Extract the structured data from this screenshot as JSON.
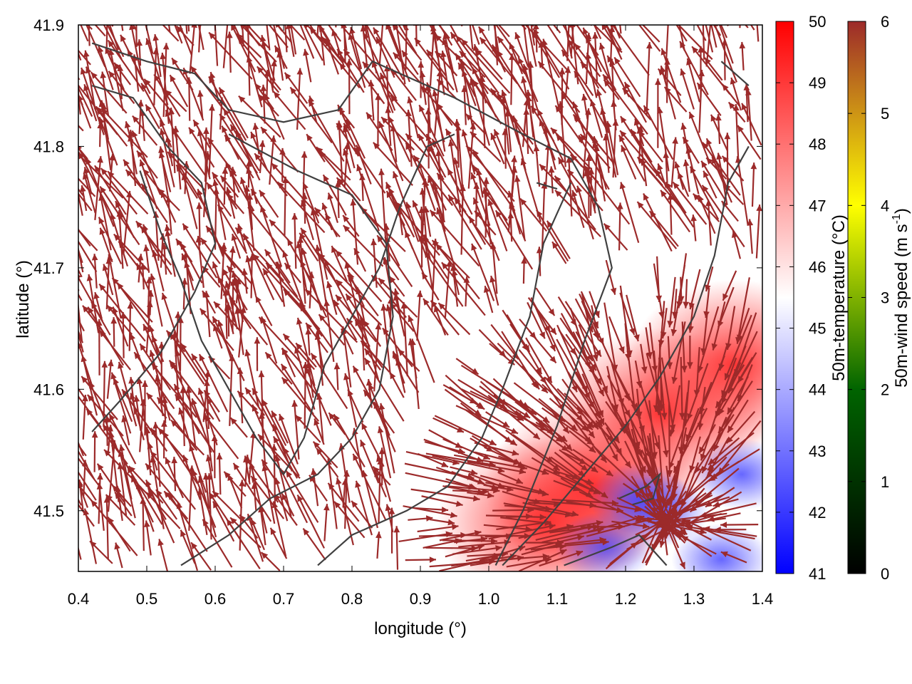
{
  "chart_data": {
    "type": "vector-field",
    "xlabel": "longitude (°)",
    "ylabel": "latitude (°)",
    "xlim": [
      0.4,
      1.4
    ],
    "ylim": [
      41.45,
      41.9
    ],
    "xticks": [
      0.4,
      0.5,
      0.6,
      0.7,
      0.8,
      0.9,
      1.0,
      1.1,
      1.2,
      1.3,
      1.4
    ],
    "xtick_labels": [
      "0.4",
      "0.5",
      "0.6",
      "0.7",
      "0.8",
      "0.9",
      "1.0",
      "1.1",
      "1.2",
      "1.3",
      "1.4"
    ],
    "yticks": [
      41.5,
      41.6,
      41.7,
      41.8,
      41.9
    ],
    "ytick_labels": [
      "41.5",
      "41.6",
      "41.7",
      "41.8",
      "41.9"
    ],
    "arrow_color": "#9c2a2a",
    "contour_color": "#404040",
    "colorbars": [
      {
        "label": "50m-temperature (°C)",
        "range": [
          41,
          50
        ],
        "ticks": [
          "41",
          "42",
          "43",
          "44",
          "45",
          "46",
          "47",
          "48",
          "49",
          "50"
        ],
        "colors": [
          "#0000ff",
          "#ffffff",
          "#ff0000"
        ]
      },
      {
        "label_main": "50m-wind speed (m s",
        "label_sup": "-1",
        "label_end": ")",
        "range": [
          0,
          6
        ],
        "ticks": [
          "0",
          "1",
          "2",
          "3",
          "4",
          "5",
          "6"
        ],
        "colors": [
          "#000000",
          "#006400",
          "#ffff00",
          "#9c2a2a"
        ]
      }
    ],
    "temperature_field": [
      {
        "lon": 1.25,
        "lat": 41.58,
        "temp": 49.5
      },
      {
        "lon": 1.36,
        "lat": 41.62,
        "temp": 49.6
      },
      {
        "lon": 1.15,
        "lat": 41.52,
        "temp": 49.2
      },
      {
        "lon": 1.08,
        "lat": 41.49,
        "temp": 49.0
      },
      {
        "lon": 1.22,
        "lat": 41.51,
        "temp": 43.0
      },
      {
        "lon": 1.25,
        "lat": 41.5,
        "temp": 42.5
      },
      {
        "lon": 1.17,
        "lat": 41.47,
        "temp": 43.5
      },
      {
        "lon": 1.34,
        "lat": 41.46,
        "temp": 43.0
      },
      {
        "lon": 1.37,
        "lat": 41.53,
        "temp": 44.0
      }
    ],
    "contours": [
      [
        [
          0.42,
          41.885
        ],
        [
          0.5,
          41.87
        ],
        [
          0.57,
          41.86
        ],
        [
          0.62,
          41.83
        ],
        [
          0.7,
          41.82
        ],
        [
          0.78,
          41.83
        ],
        [
          0.83,
          41.87
        ],
        [
          0.95,
          41.84
        ],
        [
          1.05,
          41.81
        ],
        [
          1.12,
          41.79
        ],
        [
          1.16,
          41.75
        ],
        [
          1.18,
          41.7
        ],
        [
          1.14,
          41.64
        ],
        [
          1.1,
          41.57
        ],
        [
          1.05,
          41.5
        ],
        [
          1.01,
          41.455
        ]
      ],
      [
        [
          0.42,
          41.85
        ],
        [
          0.48,
          41.84
        ],
        [
          0.53,
          41.8
        ],
        [
          0.58,
          41.77
        ],
        [
          0.6,
          41.72
        ],
        [
          0.57,
          41.68
        ],
        [
          0.52,
          41.63
        ],
        [
          0.46,
          41.59
        ],
        [
          0.42,
          41.565
        ]
      ],
      [
        [
          0.62,
          41.81
        ],
        [
          0.72,
          41.78
        ],
        [
          0.8,
          41.76
        ],
        [
          0.85,
          41.72
        ],
        [
          0.86,
          41.66
        ],
        [
          0.84,
          41.6
        ],
        [
          0.8,
          41.56
        ],
        [
          0.75,
          41.53
        ],
        [
          0.68,
          41.51
        ],
        [
          0.62,
          41.48
        ],
        [
          0.55,
          41.455
        ]
      ],
      [
        [
          0.49,
          41.78
        ],
        [
          0.52,
          41.73
        ],
        [
          0.55,
          41.69
        ],
        [
          0.58,
          41.64
        ],
        [
          0.62,
          41.6
        ],
        [
          0.66,
          41.56
        ],
        [
          0.7,
          41.53
        ],
        [
          0.73,
          41.56
        ],
        [
          0.76,
          41.62
        ],
        [
          0.8,
          41.66
        ],
        [
          0.84,
          41.7
        ],
        [
          0.87,
          41.75
        ],
        [
          0.91,
          41.8
        ],
        [
          0.95,
          41.81
        ]
      ],
      [
        [
          0.75,
          41.455
        ],
        [
          0.8,
          41.48
        ],
        [
          0.88,
          41.5
        ],
        [
          0.94,
          41.52
        ],
        [
          0.99,
          41.56
        ],
        [
          1.02,
          41.6
        ],
        [
          1.06,
          41.66
        ],
        [
          1.08,
          41.72
        ],
        [
          1.12,
          41.77
        ]
      ],
      [
        [
          1.02,
          41.455
        ],
        [
          1.08,
          41.49
        ],
        [
          1.14,
          41.53
        ],
        [
          1.2,
          41.57
        ],
        [
          1.25,
          41.61
        ],
        [
          1.3,
          41.66
        ],
        [
          1.33,
          41.71
        ],
        [
          1.35,
          41.77
        ],
        [
          1.38,
          41.8
        ]
      ],
      [
        [
          1.11,
          41.455
        ],
        [
          1.18,
          41.47
        ],
        [
          1.22,
          41.48
        ],
        [
          1.26,
          41.455
        ]
      ],
      [
        [
          1.19,
          41.51
        ],
        [
          1.23,
          41.52
        ],
        [
          1.25,
          41.53
        ],
        [
          1.24,
          41.51
        ],
        [
          1.21,
          41.505
        ]
      ],
      [
        [
          1.34,
          41.87
        ],
        [
          1.36,
          41.86
        ],
        [
          1.38,
          41.85
        ]
      ],
      [
        [
          1.07,
          41.77
        ],
        [
          1.1,
          41.765
        ]
      ]
    ]
  }
}
